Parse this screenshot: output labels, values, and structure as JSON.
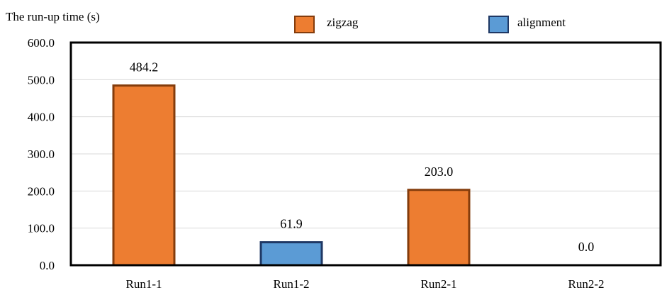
{
  "chart_data": {
    "type": "bar",
    "ylabel": "The run-up time (s)",
    "categories": [
      "Run1-1",
      "Run1-2",
      "Run2-1",
      "Run2-2"
    ],
    "values": [
      484.2,
      61.9,
      203.0,
      0.0
    ],
    "value_labels": [
      "484.2",
      "61.9",
      "203.0",
      "0.0"
    ],
    "bar_series": [
      "zigzag",
      "alignment",
      "zigzag",
      "alignment"
    ],
    "series": [
      {
        "name": "zigzag",
        "color": "#ED7D31",
        "edge_color": "#843C0C"
      },
      {
        "name": "alignment",
        "color": "#5B9BD5",
        "edge_color": "#1F3864"
      }
    ],
    "ylim": [
      0,
      600
    ],
    "yticks": [
      0,
      100,
      200,
      300,
      400,
      500,
      600
    ],
    "ytick_labels": [
      "0.0",
      "100.0",
      "200.0",
      "300.0",
      "400.0",
      "500.0",
      "600.0"
    ],
    "grid": true,
    "legend_position": "top-center"
  }
}
